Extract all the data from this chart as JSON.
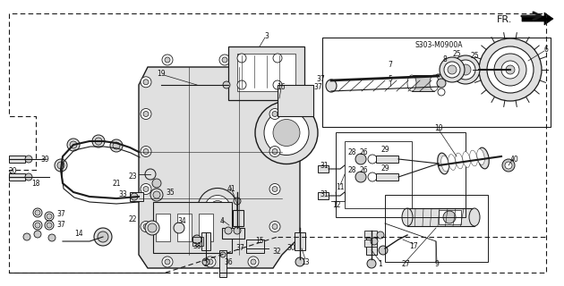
{
  "bg_color": "#ffffff",
  "fig_width": 6.3,
  "fig_height": 3.2,
  "dpi": 100,
  "diagram_code": "S303-M0900A",
  "line_color": "#1a1a1a",
  "text_color": "#111111",
  "gray_fill": "#cccccc",
  "light_gray": "#e0e0e0",
  "dark_gray": "#555555"
}
